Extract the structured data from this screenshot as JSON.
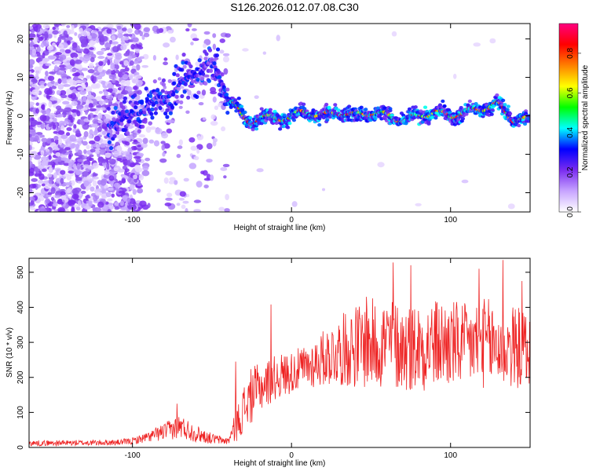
{
  "title": "S126.2026.012.07.08.C30",
  "chart_data": [
    {
      "type": "heatmap",
      "title": "S126.2026.012.07.08.C30",
      "xlabel": "Height of straight line (km)",
      "ylabel": "Frequency (Hz)",
      "xlim": [
        -165,
        150
      ],
      "ylim": [
        -25,
        24
      ],
      "xticks": [
        -100,
        0,
        100
      ],
      "xtick_labels": [
        "-100",
        "0",
        "100"
      ],
      "yticks": [
        -20,
        -10,
        0,
        10,
        20
      ],
      "ytick_labels": [
        "-20",
        "-10",
        "0",
        "10",
        "20"
      ],
      "ridge": {
        "x": [
          -110,
          -100,
          -90,
          -80,
          -70,
          -60,
          -50,
          -45,
          -40,
          -35,
          -30,
          -25,
          -20,
          -10,
          0,
          10,
          20,
          30,
          40,
          50,
          60,
          70,
          80,
          90,
          100,
          110,
          120,
          130,
          140,
          145
        ],
        "freq": [
          -2,
          0,
          3,
          5,
          8,
          11,
          14,
          9,
          5,
          3,
          -1,
          -2,
          0,
          -1,
          0,
          1,
          0,
          1,
          0,
          1,
          0,
          -1,
          0,
          1,
          0,
          1,
          2,
          3,
          -1,
          -1
        ]
      },
      "colorbar": {
        "label": "Normalized spectral amplitude",
        "range": [
          0.0,
          0.95
        ],
        "ticks": [
          0.0,
          0.2,
          0.4,
          0.6,
          0.8
        ],
        "tick_labels": [
          "0.0",
          "0.2",
          "0.4",
          "0.6",
          "0.8"
        ],
        "colors": [
          "#ffffff",
          "#c7a4ff",
          "#7a2cf0",
          "#0000ff",
          "#00ffff",
          "#00ff00",
          "#ffff00",
          "#ff8000",
          "#ff0000",
          "#ff0080"
        ]
      }
    },
    {
      "type": "line",
      "xlabel": "Height of straight line (km)",
      "ylabel": "SNR (10 * v/v)",
      "xlim": [
        -165,
        150
      ],
      "ylim": [
        0,
        540
      ],
      "xticks": [
        -100,
        0,
        100
      ],
      "xtick_labels": [
        "-100",
        "0",
        "100"
      ],
      "yticks": [
        0,
        100,
        200,
        300,
        400,
        500
      ],
      "ytick_labels": [
        "0",
        "100",
        "200",
        "300",
        "400",
        "500"
      ],
      "color": "#ee2222",
      "series": [
        {
          "name": "SNR",
          "envelope_x": [
            -165,
            -110,
            -100,
            -90,
            -80,
            -70,
            -60,
            -50,
            -40,
            -35,
            -30,
            -25,
            -20,
            -10,
            0,
            10,
            20,
            30,
            40,
            50,
            60,
            70,
            80,
            90,
            100,
            110,
            120,
            130,
            140,
            150
          ],
          "envelope_mean": [
            12,
            14,
            18,
            30,
            45,
            60,
            40,
            25,
            18,
            60,
            110,
            150,
            170,
            200,
            215,
            230,
            255,
            275,
            290,
            295,
            300,
            285,
            290,
            295,
            295,
            290,
            300,
            290,
            285,
            280
          ],
          "envelope_spread": [
            8,
            8,
            10,
            15,
            25,
            35,
            25,
            15,
            10,
            45,
            70,
            80,
            70,
            65,
            60,
            65,
            80,
            100,
            120,
            130,
            135,
            125,
            130,
            130,
            130,
            120,
            130,
            130,
            120,
            110
          ],
          "peaks": [
            {
              "x": -72,
              "y": 125
            },
            {
              "x": -35,
              "y": 245
            },
            {
              "x": -13,
              "y": 408
            },
            {
              "x": 47,
              "y": 430
            },
            {
              "x": 64,
              "y": 528
            },
            {
              "x": 75,
              "y": 520
            },
            {
              "x": 118,
              "y": 510
            },
            {
              "x": 133,
              "y": 535
            },
            {
              "x": 145,
              "y": 475
            }
          ]
        }
      ]
    }
  ]
}
